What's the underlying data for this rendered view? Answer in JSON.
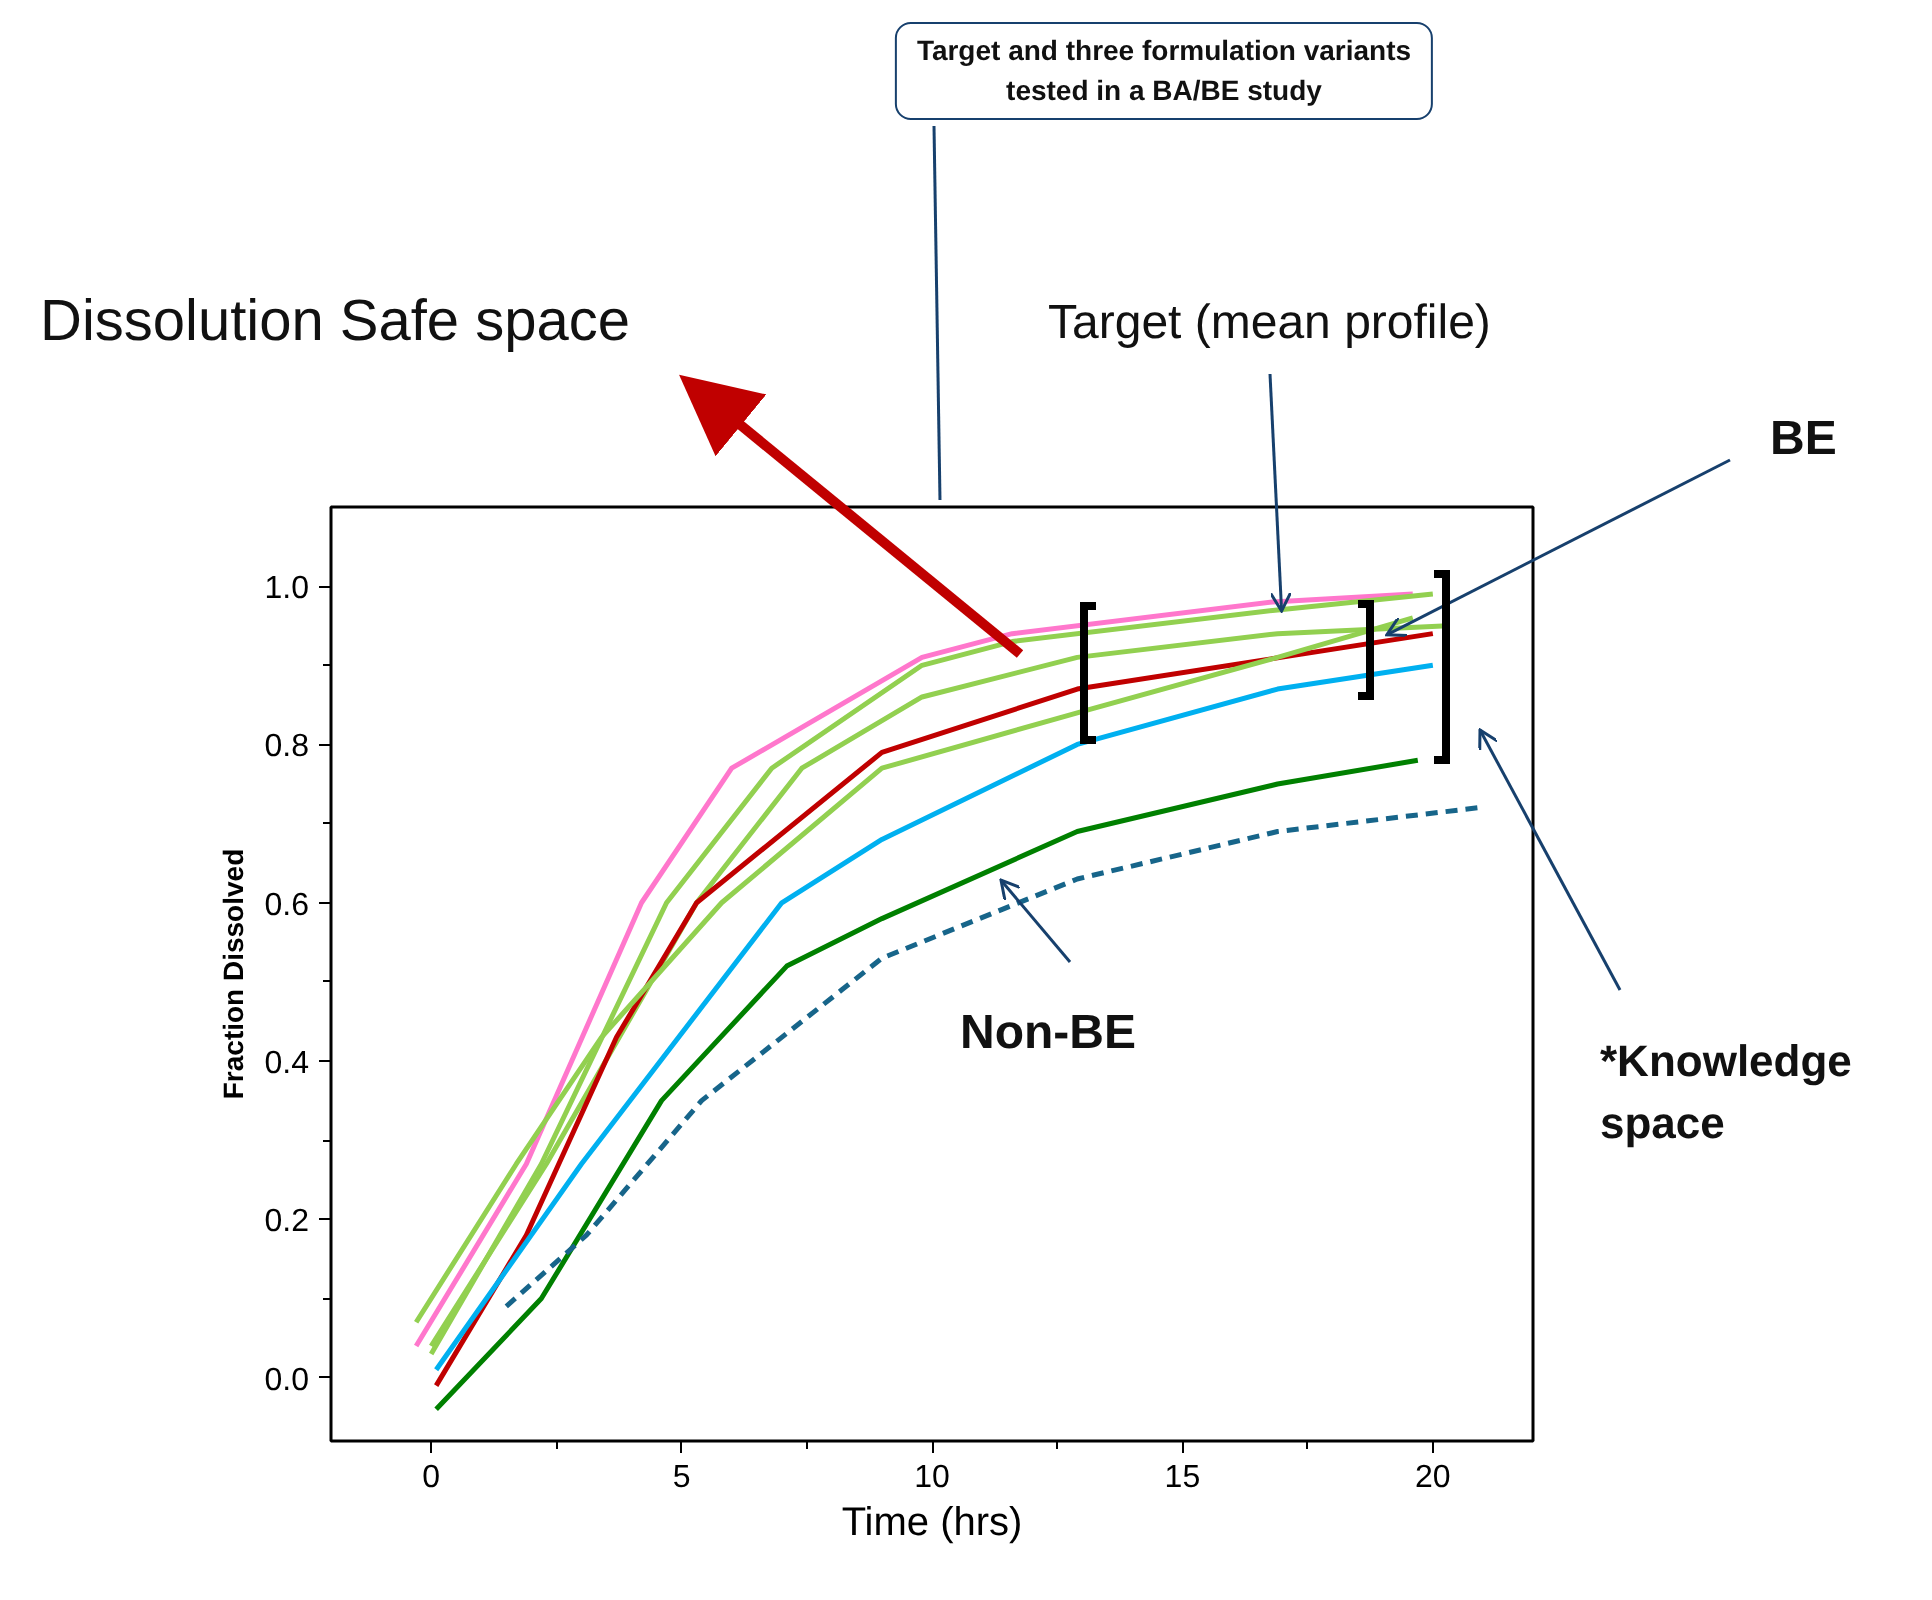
{
  "chart_data": {
    "type": "line",
    "xlabel": "Time (hrs)",
    "ylabel": "Fraction Dissolved",
    "xlim": [
      -2,
      22
    ],
    "ylim": [
      -0.08,
      1.1
    ],
    "xticks": [
      0,
      {
        "value": 2.5,
        "label": null
      },
      5,
      {
        "value": 7.5,
        "label": null
      },
      10,
      {
        "value": 12.5,
        "label": null
      },
      15,
      {
        "value": 17.5,
        "label": null
      },
      20
    ],
    "yticks": [
      {
        "value": 0,
        "label": "0.0"
      },
      {
        "value": 0.1,
        "label": null
      },
      {
        "value": 0.2,
        "label": "0.2"
      },
      {
        "value": 0.3,
        "label": null
      },
      {
        "value": 0.4,
        "label": "0.4"
      },
      {
        "value": 0.5,
        "label": null
      },
      {
        "value": 0.6,
        "label": "0.6"
      },
      {
        "value": 0.7,
        "label": null
      },
      {
        "value": 0.8,
        "label": "0.8"
      },
      {
        "value": 0.9,
        "label": null
      },
      {
        "value": 1.0,
        "label": "1.0"
      }
    ],
    "grid": false,
    "marker": "none",
    "series": [
      {
        "color": "#ff77cc",
        "x": [
          -0.3,
          1.9,
          4.2,
          6.0,
          9.8,
          11.6,
          16.8,
          19.6
        ],
        "values": [
          0.04,
          0.27,
          0.6,
          0.77,
          0.91,
          0.94,
          0.98,
          0.99
        ]
      },
      {
        "color": "#92d050",
        "x": [
          0,
          2.2,
          4.7,
          6.8,
          9.8,
          11.6,
          16.9,
          20
        ],
        "values": [
          0.03,
          0.27,
          0.6,
          0.77,
          0.9,
          0.93,
          0.97,
          0.99
        ]
      },
      {
        "color": "#92d050",
        "x": [
          0,
          2.3,
          5.3,
          7.4,
          9.8,
          12.9,
          16.9,
          20.3
        ],
        "values": [
          0.04,
          0.27,
          0.6,
          0.77,
          0.86,
          0.91,
          0.94,
          0.95
        ]
      },
      {
        "color": "#c00000",
        "x": [
          0.1,
          1.9,
          3.7,
          5.3,
          9.0,
          12.9,
          20
        ],
        "values": [
          -0.01,
          0.18,
          0.43,
          0.6,
          0.79,
          0.87,
          0.94
        ]
      },
      {
        "color": "#92d050",
        "x": [
          -0.3,
          1.7,
          3.4,
          5.8,
          9.0,
          12.9,
          16.9,
          19.6
        ],
        "values": [
          0.07,
          0.27,
          0.43,
          0.6,
          0.77,
          0.84,
          0.91,
          0.96
        ]
      },
      {
        "color": "#00b0f0",
        "x": [
          0.1,
          3.0,
          7.0,
          9.0,
          12.9,
          16.9,
          20
        ],
        "values": [
          0.01,
          0.27,
          0.6,
          0.68,
          0.8,
          0.87,
          0.9
        ]
      },
      {
        "color": "#008000",
        "x": [
          0.1,
          2.2,
          4.6,
          7.1,
          9.0,
          12.9,
          16.9,
          19.7
        ],
        "values": [
          -0.04,
          0.1,
          0.35,
          0.52,
          0.58,
          0.69,
          0.75,
          0.78
        ]
      },
      {
        "color": "#17658a",
        "line_style": "dashed",
        "x": [
          1.5,
          3.1,
          5.4,
          8.2,
          9.0,
          12.9,
          16.9,
          20.9
        ],
        "values": [
          0.09,
          0.18,
          0.35,
          0.49,
          0.53,
          0.63,
          0.69,
          0.72
        ]
      }
    ],
    "annotations": [
      "Target and  three formulation variants tested in a BA/BE study",
      "Dissolution Safe space",
      {
        "text": "Target (mean profile)",
        "x": 16.8,
        "y": 0.98
      },
      {
        "text": "BE",
        "x": 18.9,
        "y": 0.95
      },
      {
        "text": "Non-BE",
        "x": 11.2,
        "y": 0.64
      },
      "*Knowledge space"
    ]
  }
}
